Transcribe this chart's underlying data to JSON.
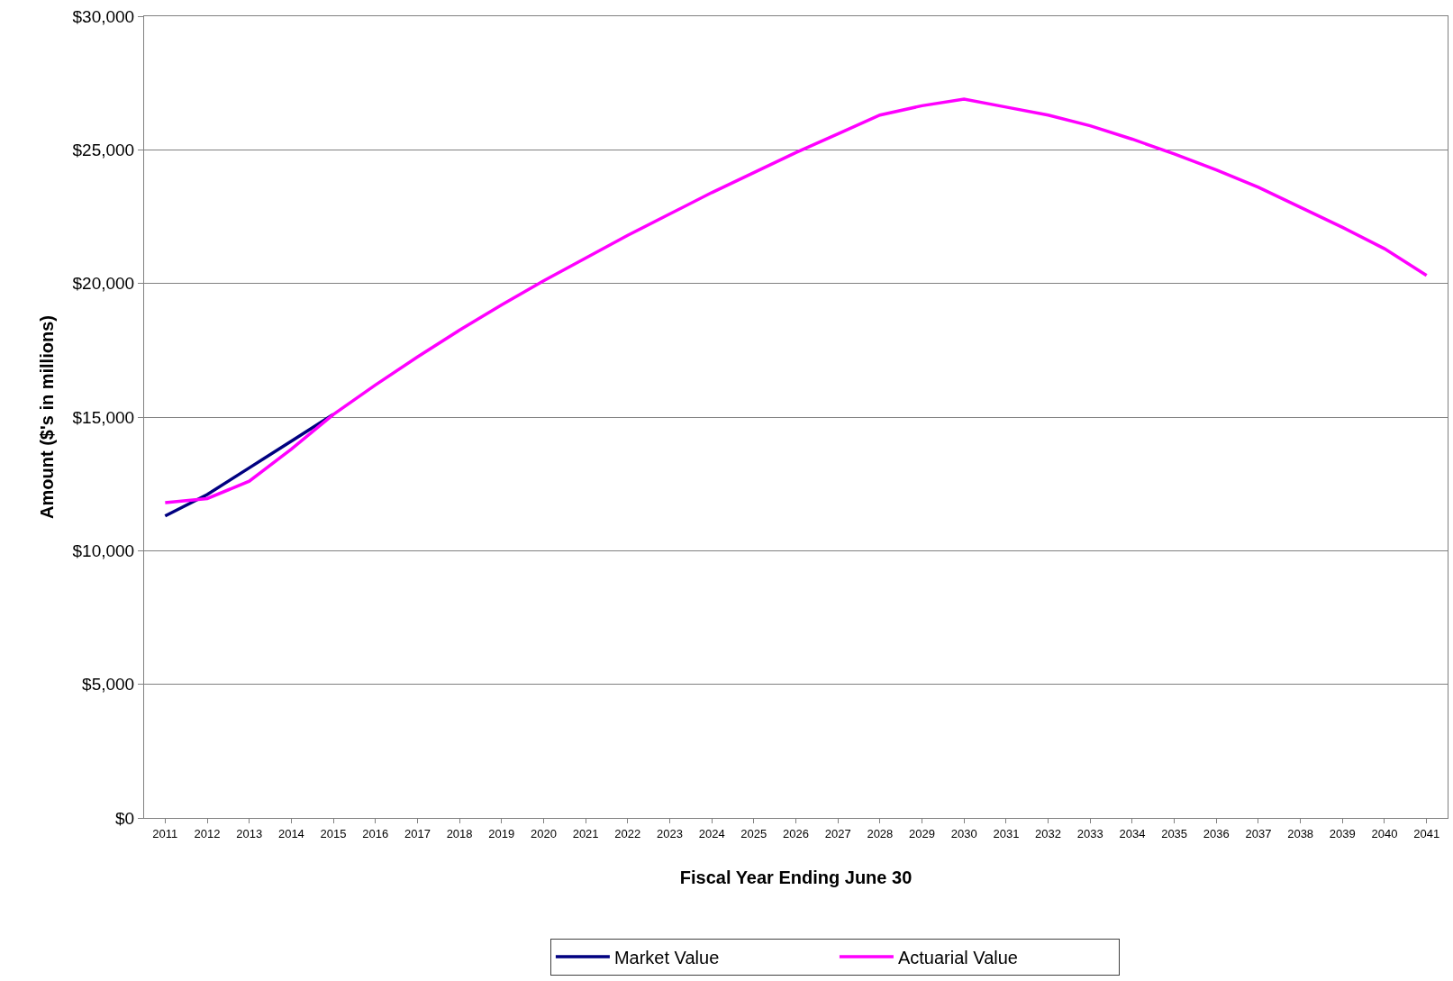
{
  "chart_data": {
    "type": "line",
    "xlabel": "Fiscal Year Ending June 30",
    "ylabel": "Amount ($'s in millions)",
    "categories": [
      "2011",
      "2012",
      "2013",
      "2014",
      "2015",
      "2016",
      "2017",
      "2018",
      "2019",
      "2020",
      "2021",
      "2022",
      "2023",
      "2024",
      "2025",
      "2026",
      "2027",
      "2028",
      "2029",
      "2030",
      "2031",
      "2032",
      "2033",
      "2034",
      "2035",
      "2036",
      "2037",
      "2038",
      "2039",
      "2040",
      "2041"
    ],
    "series": [
      {
        "name": "Market Value",
        "color": "#000080",
        "values": [
          11300,
          12100,
          13100,
          14100,
          15100,
          null,
          null,
          null,
          null,
          null,
          null,
          null,
          null,
          null,
          null,
          null,
          null,
          null,
          null,
          null,
          null,
          null,
          null,
          null,
          null,
          null,
          null,
          null,
          null,
          null,
          null
        ]
      },
      {
        "name": "Actuarial Value",
        "color": "#ff00ff",
        "values": [
          11800,
          11950,
          12600,
          13800,
          15100,
          16200,
          17250,
          18250,
          19200,
          20100,
          20950,
          21800,
          22600,
          23400,
          24150,
          24900,
          25600,
          26300,
          26650,
          26900,
          26600,
          26300,
          25900,
          25400,
          24850,
          24250,
          23600,
          22850,
          22100,
          21300,
          20300
        ]
      }
    ],
    "ylim": [
      0,
      30000
    ],
    "yticks": [
      {
        "value": 0,
        "label": "$0"
      },
      {
        "value": 5000,
        "label": "$5,000"
      },
      {
        "value": 10000,
        "label": "$10,000"
      },
      {
        "value": 15000,
        "label": "$15,000"
      },
      {
        "value": 20000,
        "label": "$20,000"
      },
      {
        "value": 25000,
        "label": "$25,000"
      },
      {
        "value": 30000,
        "label": "$30,000"
      }
    ],
    "grid": "y",
    "legend": "bottom",
    "marker": "none",
    "line_style": "solid"
  }
}
